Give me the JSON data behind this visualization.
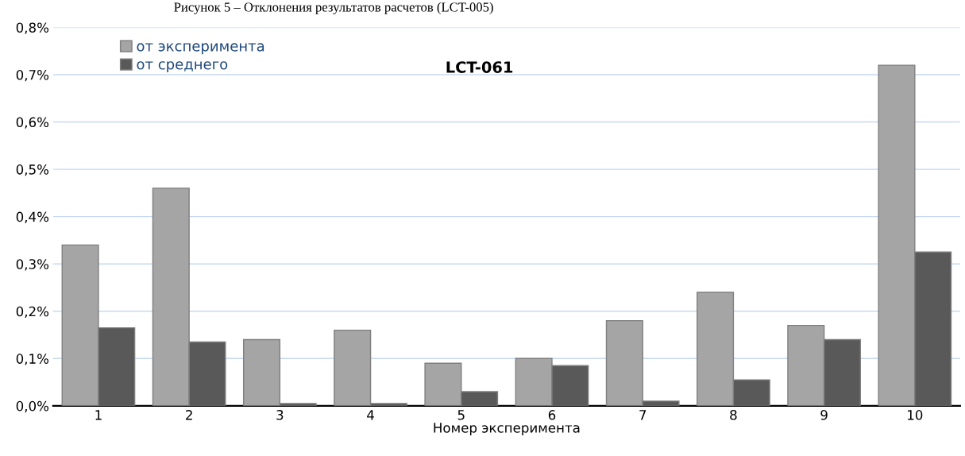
{
  "chart_data": {
    "type": "bar",
    "title": "LCT-061",
    "xlabel": "Номер эксперимента",
    "annotations": [
      "Рисунок 5 – Отклонения результатов расчетов (LCT-005)"
    ],
    "categories": [
      "1",
      "2",
      "3",
      "4",
      "5",
      "6",
      "7",
      "8",
      "9",
      "10"
    ],
    "series": [
      {
        "name": "от эксперимента",
        "color": "#a5a5a5",
        "values": [
          0.34,
          0.46,
          0.14,
          0.16,
          0.09,
          0.1,
          0.18,
          0.24,
          0.17,
          0.72
        ]
      },
      {
        "name": "от среднего",
        "color": "#595959",
        "values": [
          0.165,
          0.135,
          0.005,
          0.005,
          0.03,
          0.085,
          0.01,
          0.055,
          0.14,
          0.325
        ]
      }
    ],
    "ylim": [
      0,
      0.8
    ],
    "yticks": [
      {
        "value": 0,
        "label": "0,0%"
      },
      {
        "value": 0.1,
        "label": "0,1%"
      },
      {
        "value": 0.2,
        "label": "0,2%"
      },
      {
        "value": 0.3,
        "label": "0,3%"
      },
      {
        "value": 0.4,
        "label": "0,4%"
      },
      {
        "value": 0.5,
        "label": "0,5%"
      },
      {
        "value": 0.6,
        "label": "0,6%"
      },
      {
        "value": 0.7,
        "label": "0,7%"
      },
      {
        "value": 0.8,
        "label": "0,8%"
      }
    ],
    "grid": "y",
    "legend": "top left"
  }
}
